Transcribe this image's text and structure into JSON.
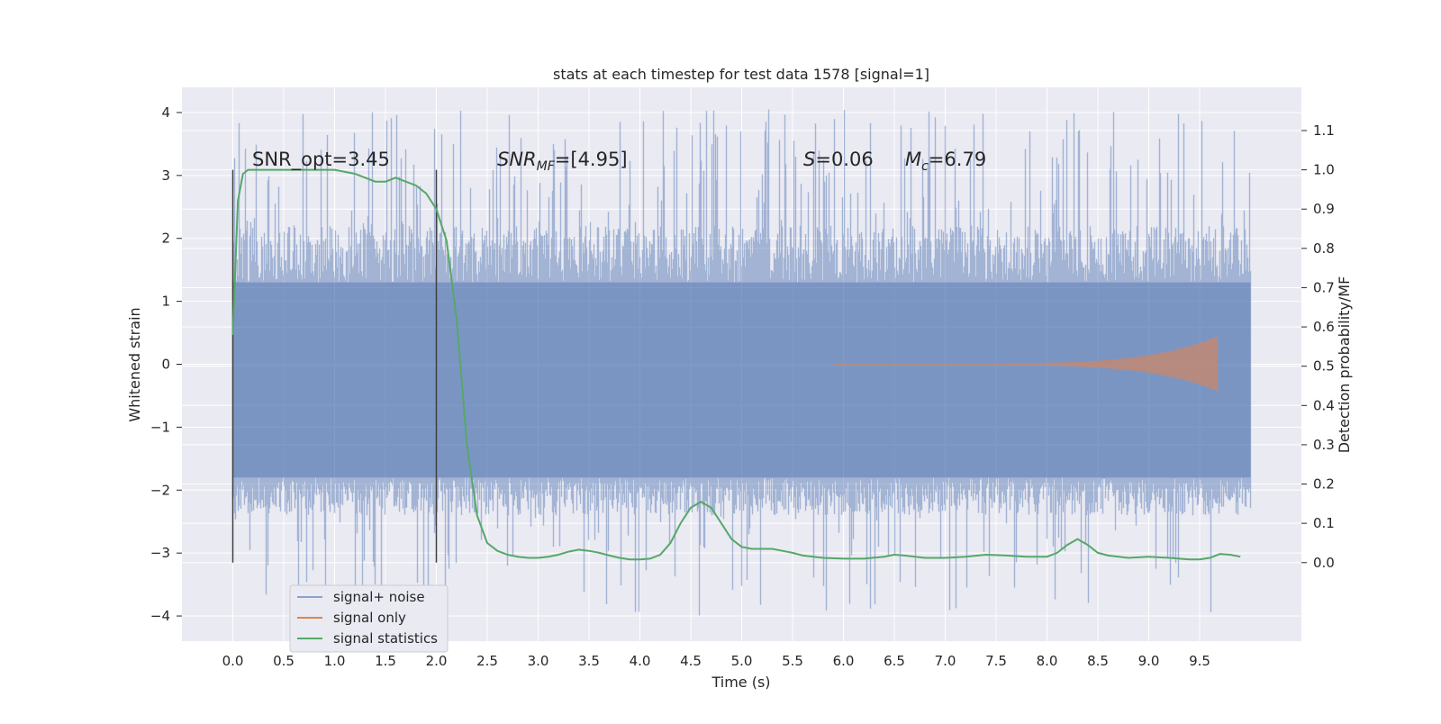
{
  "chart_data": {
    "type": "line",
    "title": "stats at each timestep for test data 1578 [signal=1]",
    "xlabel": "Time (s)",
    "ylabel": "Whitened strain",
    "ylabel_right": "Detection probability/MF",
    "xlim": [
      -0.5,
      10.5
    ],
    "ylim": [
      -4.4,
      4.4
    ],
    "ylim_right": [
      -0.2,
      1.21
    ],
    "xticks": [
      "0.0",
      "0.5",
      "1.0",
      "1.5",
      "2.0",
      "2.5",
      "3.0",
      "3.5",
      "4.0",
      "4.5",
      "5.0",
      "5.5",
      "6.0",
      "6.5",
      "7.0",
      "7.5",
      "8.0",
      "8.5",
      "9.0",
      "9.5"
    ],
    "yticks": [
      "4",
      "3",
      "2",
      "1",
      "0",
      "−1",
      "−2",
      "−3",
      "−4"
    ],
    "yticks_right": [
      "1.1",
      "1.0",
      "0.9",
      "0.8",
      "0.7",
      "0.6",
      "0.5",
      "0.4",
      "0.3",
      "0.2",
      "0.1",
      "0.0"
    ],
    "grid": true,
    "legend_position": "lower-left",
    "annotations": {
      "snr_opt": "SNR_opt=3.45",
      "snr_mf_name": "SNR",
      "snr_mf_sub": "MF",
      "snr_mf_value": "=[4.95]",
      "s_name": "S",
      "s_value": "=0.06",
      "mc_name": "M",
      "mc_sub": "c",
      "mc_value": "=6.79"
    },
    "vlines": [
      0.0,
      2.0
    ],
    "series": [
      {
        "name": "signal+ noise",
        "color": "#4c72b0",
        "x_range": [
          0.0,
          10.0
        ],
        "typical_envelope": [
          -1.8,
          1.3
        ],
        "extremes": [
          -4.0,
          4.05
        ]
      },
      {
        "name": "signal only",
        "color": "#dd8452",
        "x_range": [
          5.9,
          9.68
        ],
        "start_amplitude": 0.01,
        "peak_amplitude": 0.45
      },
      {
        "name": "signal statistics",
        "color": "#55a868",
        "axis": "right",
        "x": [
          0.0,
          0.05,
          0.1,
          0.15,
          0.2,
          0.3,
          0.4,
          0.5,
          0.6,
          0.8,
          1.0,
          1.2,
          1.3,
          1.4,
          1.5,
          1.6,
          1.7,
          1.8,
          1.9,
          2.0,
          2.1,
          2.2,
          2.3,
          2.4,
          2.5,
          2.6,
          2.7,
          2.8,
          2.9,
          3.0,
          3.1,
          3.2,
          3.3,
          3.4,
          3.5,
          3.6,
          3.7,
          3.8,
          3.9,
          4.0,
          4.1,
          4.2,
          4.3,
          4.4,
          4.5,
          4.6,
          4.7,
          4.8,
          4.9,
          5.0,
          5.1,
          5.2,
          5.3,
          5.4,
          5.5,
          5.6,
          5.8,
          6.0,
          6.2,
          6.4,
          6.5,
          6.6,
          6.8,
          7.0,
          7.2,
          7.4,
          7.6,
          7.8,
          8.0,
          8.1,
          8.2,
          8.3,
          8.4,
          8.5,
          8.6,
          8.8,
          9.0,
          9.2,
          9.4,
          9.5,
          9.6,
          9.7,
          9.8,
          9.9
        ],
        "y": [
          0.58,
          0.92,
          0.99,
          1.0,
          1.0,
          1.0,
          1.0,
          1.0,
          1.0,
          1.0,
          1.0,
          0.99,
          0.98,
          0.97,
          0.97,
          0.98,
          0.97,
          0.96,
          0.94,
          0.9,
          0.82,
          0.62,
          0.3,
          0.12,
          0.05,
          0.03,
          0.02,
          0.015,
          0.012,
          0.012,
          0.015,
          0.02,
          0.028,
          0.033,
          0.03,
          0.025,
          0.018,
          0.012,
          0.008,
          0.008,
          0.01,
          0.02,
          0.05,
          0.1,
          0.14,
          0.155,
          0.14,
          0.1,
          0.06,
          0.04,
          0.035,
          0.035,
          0.035,
          0.03,
          0.025,
          0.018,
          0.012,
          0.01,
          0.01,
          0.015,
          0.02,
          0.018,
          0.012,
          0.012,
          0.015,
          0.02,
          0.018,
          0.015,
          0.015,
          0.025,
          0.045,
          0.06,
          0.045,
          0.025,
          0.018,
          0.012,
          0.015,
          0.012,
          0.008,
          0.008,
          0.012,
          0.022,
          0.02,
          0.015
        ]
      }
    ]
  }
}
